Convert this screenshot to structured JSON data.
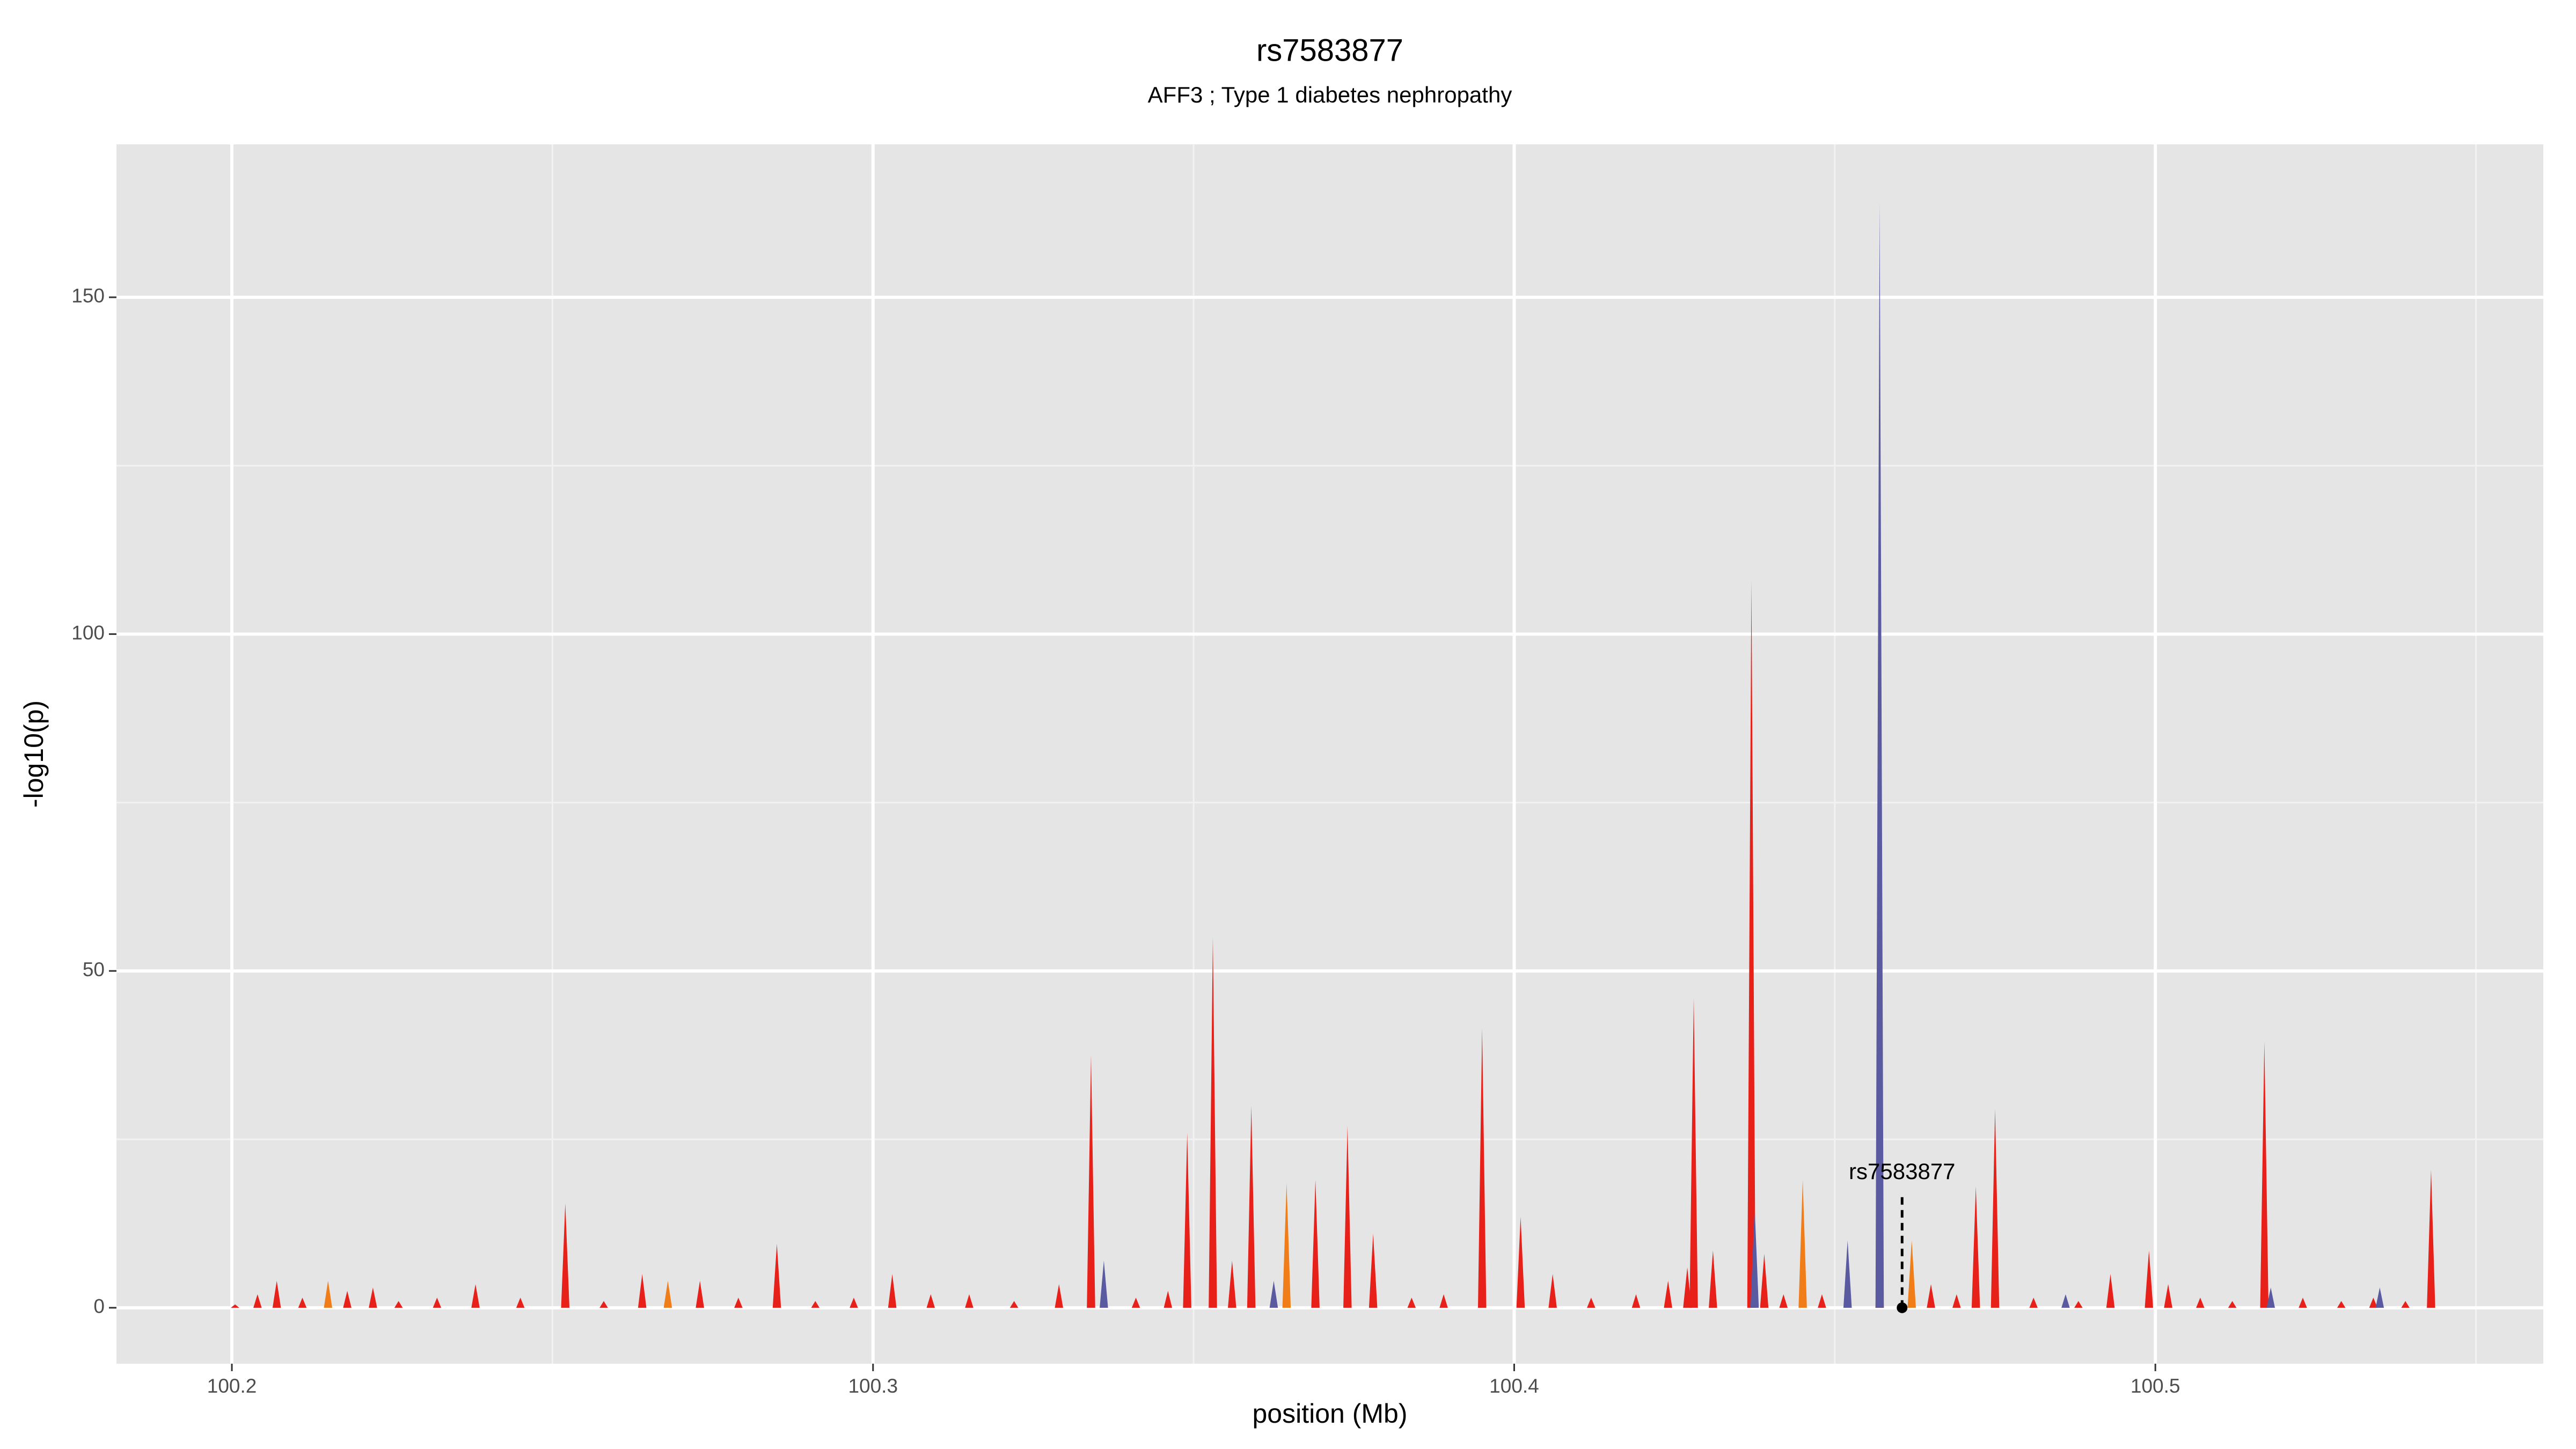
{
  "chart_data": {
    "type": "spike",
    "title": "rs7583877",
    "subtitle": "AFF3 ; Type 1 diabetes nephropathy",
    "xlabel": "position (Mb)",
    "ylabel": "-log10(p)",
    "xlim": [
      100.182,
      100.5605
    ],
    "ylim": [
      -8.3,
      172.7
    ],
    "xticks": [
      100.2,
      100.3,
      100.4,
      100.5
    ],
    "yticks": [
      0,
      50,
      100,
      150
    ],
    "grid": true,
    "series": [
      {
        "color": "#e8201a",
        "x": [
          100.2005,
          100.204,
          100.207,
          100.211,
          100.218,
          100.222,
          100.226,
          100.232,
          100.238,
          100.245,
          100.252,
          100.258,
          100.264,
          100.273,
          100.279,
          100.285,
          100.291,
          100.297,
          100.303,
          100.309,
          100.315,
          100.322,
          100.329,
          100.334,
          100.341,
          100.346,
          100.349,
          100.353,
          100.356,
          100.359,
          100.369,
          100.374,
          100.378,
          100.384,
          100.389,
          100.395,
          100.401,
          100.406,
          100.412,
          100.419,
          100.424,
          100.427,
          100.428,
          100.431,
          100.437,
          100.439,
          100.442,
          100.448,
          100.457,
          100.465,
          100.469,
          100.472,
          100.475,
          100.481,
          100.488,
          100.493,
          100.499,
          100.502,
          100.507,
          100.512,
          100.517,
          100.523,
          100.529,
          100.534,
          100.539,
          100.543
        ],
        "values": [
          0.5,
          2,
          4,
          1.5,
          2.5,
          3,
          1,
          1.5,
          3.5,
          1.5,
          15.5,
          1,
          5,
          4,
          1.5,
          9.5,
          1,
          1.5,
          5,
          2,
          2,
          1,
          3.5,
          37.5,
          1.5,
          2.5,
          26,
          55,
          7,
          30,
          19,
          27,
          11,
          1.5,
          2,
          41.5,
          13.5,
          5,
          1.5,
          2,
          4,
          6,
          46,
          8.5,
          108,
          8,
          2,
          2,
          20,
          3.5,
          2,
          18,
          29.5,
          1.5,
          1,
          5,
          8.5,
          3.5,
          1.5,
          1,
          39.5,
          1.5,
          1,
          1.5,
          1,
          20.5
        ]
      },
      {
        "color": "#f07d18",
        "x": [
          100.215,
          100.268,
          100.3645,
          100.445,
          100.462
        ],
        "values": [
          4,
          4,
          18.5,
          19,
          10
        ]
      },
      {
        "color": "#5a5aa0",
        "x": [
          100.336,
          100.3625,
          100.4375,
          100.452,
          100.457,
          100.486,
          100.518,
          100.535
        ],
        "values": [
          7,
          4,
          15,
          10,
          164,
          2,
          3,
          3
        ]
      }
    ],
    "annotation": {
      "text": "rs7583877",
      "x": 100.4605,
      "y": 0,
      "label_y": 20
    }
  }
}
